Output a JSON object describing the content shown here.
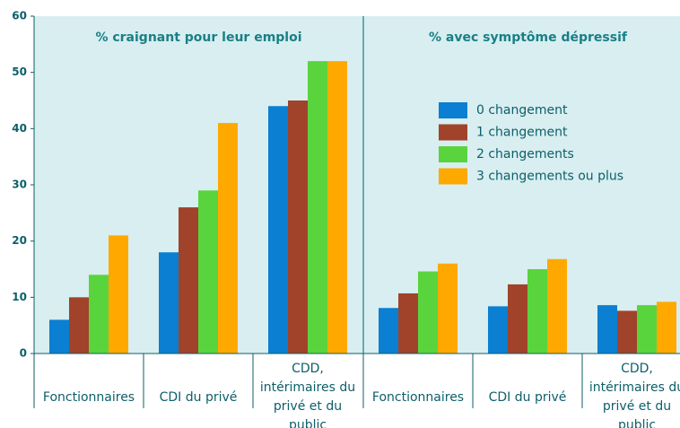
{
  "chart_data": {
    "type": "bar",
    "categories": [
      "Fonctionnaires",
      "CDI du privé",
      "CDD, intérimaires du privé et du public"
    ],
    "ylim": [
      0,
      60
    ],
    "yticks": [
      0,
      10,
      20,
      30,
      40,
      50,
      60
    ],
    "series": [
      {
        "name": "0 changement",
        "color": "#0b7fd1"
      },
      {
        "name": "1 changement",
        "color": "#a0432a"
      },
      {
        "name": "2 changements",
        "color": "#5ad43c"
      },
      {
        "name": "3 changements ou plus",
        "color": "#ffa900"
      }
    ],
    "panels": [
      {
        "title": "% craignant pour leur emploi",
        "values": [
          [
            6,
            10,
            14,
            21
          ],
          [
            18,
            26,
            29,
            41
          ],
          [
            44,
            45,
            52,
            52
          ]
        ]
      },
      {
        "title": "% avec symptôme dépressif",
        "values": [
          [
            8.1,
            10.7,
            14.6,
            16
          ],
          [
            8.4,
            12.3,
            15,
            16.8
          ],
          [
            8.6,
            7.6,
            8.6,
            9.2
          ]
        ]
      }
    ]
  }
}
